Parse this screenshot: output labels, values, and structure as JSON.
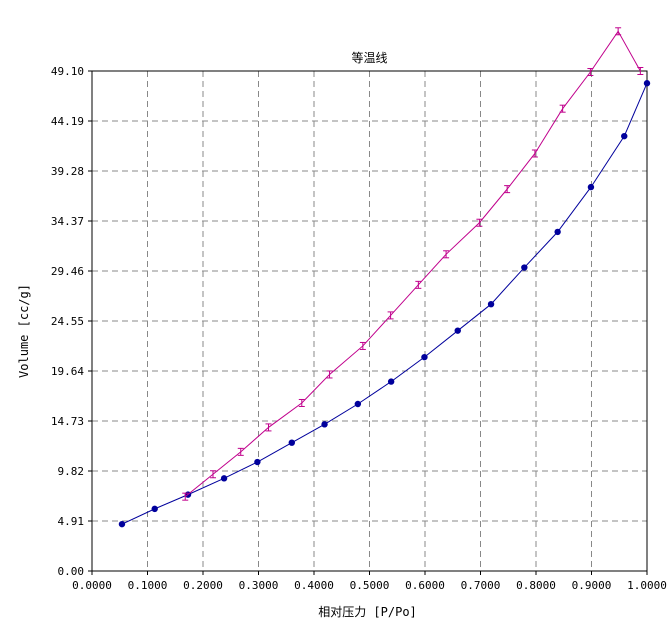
{
  "chart_data": {
    "type": "line",
    "title": "等温线",
    "xlabel": "相对压力 [P/Po]",
    "ylabel": "Volume [cc/g]",
    "xlim": [
      0.0,
      1.0
    ],
    "ylim": [
      0.0,
      49.1
    ],
    "x_ticks": [
      "0.0000",
      "0.1000",
      "0.2000",
      "0.3000",
      "0.4000",
      "0.5000",
      "0.6000",
      "0.7000",
      "0.8000",
      "0.9000",
      "1.0000"
    ],
    "y_ticks": [
      "0.00",
      "4.91",
      "9.82",
      "14.73",
      "19.64",
      "24.55",
      "29.46",
      "34.37",
      "39.28",
      "44.19",
      "49.10"
    ],
    "grid": true,
    "series": [
      {
        "color": "#00009c",
        "marker": "circle",
        "x": [
          0.054,
          0.113,
          0.173,
          0.238,
          0.298,
          0.36,
          0.419,
          0.479,
          0.539,
          0.599,
          0.659,
          0.719,
          0.779,
          0.839,
          0.899,
          0.959,
          1.0
        ],
        "y": [
          4.6,
          6.1,
          7.5,
          9.1,
          10.7,
          12.6,
          14.4,
          16.4,
          18.6,
          21.0,
          23.6,
          26.2,
          29.8,
          33.3,
          37.7,
          42.7,
          47.9
        ]
      },
      {
        "color": "#c0008c",
        "marker": "errorbar",
        "x": [
          0.168,
          0.218,
          0.268,
          0.318,
          0.378,
          0.428,
          0.488,
          0.538,
          0.588,
          0.638,
          0.698,
          0.748,
          0.798,
          0.848,
          0.898,
          0.948,
          0.988
        ],
        "y": [
          7.3,
          9.5,
          11.7,
          14.1,
          16.5,
          19.3,
          22.1,
          25.1,
          28.1,
          31.1,
          34.2,
          37.5,
          41.0,
          45.4,
          49.0,
          53.0,
          49.1
        ]
      }
    ]
  }
}
